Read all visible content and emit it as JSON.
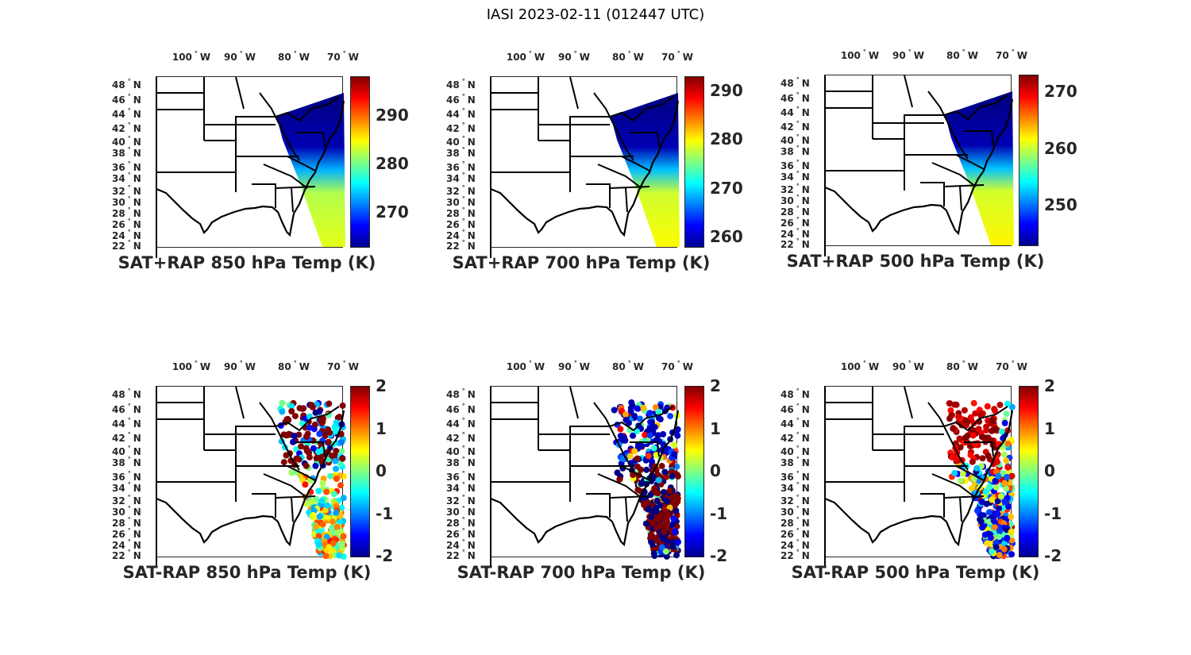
{
  "figure_title": "IASI 2023-02-11 (012447 UTC)",
  "chart_data": {
    "type": "map",
    "lon_labels": [
      "100",
      "90",
      "80",
      "70"
    ],
    "lon_suffix": "W",
    "lat_labels": [
      "48",
      "46",
      "44",
      "42",
      "40",
      "38",
      "36",
      "34",
      "32",
      "30",
      "28",
      "26",
      "24",
      "22"
    ],
    "lat_suffix": "N",
    "degree": "°",
    "colormap": "jet",
    "panels": [
      {
        "title": "SAT+RAP 850 hPa Temp (K)",
        "kind": "field",
        "clim": [
          263,
          298
        ],
        "ticks": [
          "270",
          "280",
          "290"
        ],
        "tick_values": [
          270,
          280,
          290
        ],
        "swath_north": 263,
        "swath_south": 284
      },
      {
        "title": "SAT+RAP 700 hPa Temp (K)",
        "kind": "field",
        "clim": [
          258,
          293
        ],
        "ticks": [
          "260",
          "270",
          "280",
          "290"
        ],
        "tick_values": [
          260,
          270,
          280,
          290
        ],
        "swath_north": 258,
        "swath_south": 280
      },
      {
        "title": "SAT+RAP 500 hPa Temp (K)",
        "kind": "field",
        "clim": [
          243,
          273
        ],
        "ticks": [
          "250",
          "260",
          "270"
        ],
        "tick_values": [
          250,
          260,
          270
        ],
        "swath_north": 243,
        "swath_south": 262
      },
      {
        "title": "SAT-RAP 850 hPa Temp (K)",
        "kind": "difference",
        "clim": [
          -2,
          2
        ],
        "ticks": [
          "-2",
          "-1",
          "0",
          "1",
          "2"
        ],
        "tick_values": [
          -2,
          -1,
          0,
          1,
          2
        ]
      },
      {
        "title": "SAT-RAP 700 hPa Temp (K)",
        "kind": "difference",
        "clim": [
          -2,
          2
        ],
        "ticks": [
          "-2",
          "-1",
          "0",
          "1",
          "2"
        ],
        "tick_values": [
          -2,
          -1,
          0,
          1,
          2
        ]
      },
      {
        "title": "SAT-RAP 500 hPa Temp (K)",
        "kind": "difference",
        "clim": [
          -2,
          2
        ],
        "ticks": [
          "-2",
          "-1",
          "0",
          "1",
          "2"
        ],
        "tick_values": [
          -2,
          -1,
          0,
          1,
          2
        ]
      }
    ]
  }
}
